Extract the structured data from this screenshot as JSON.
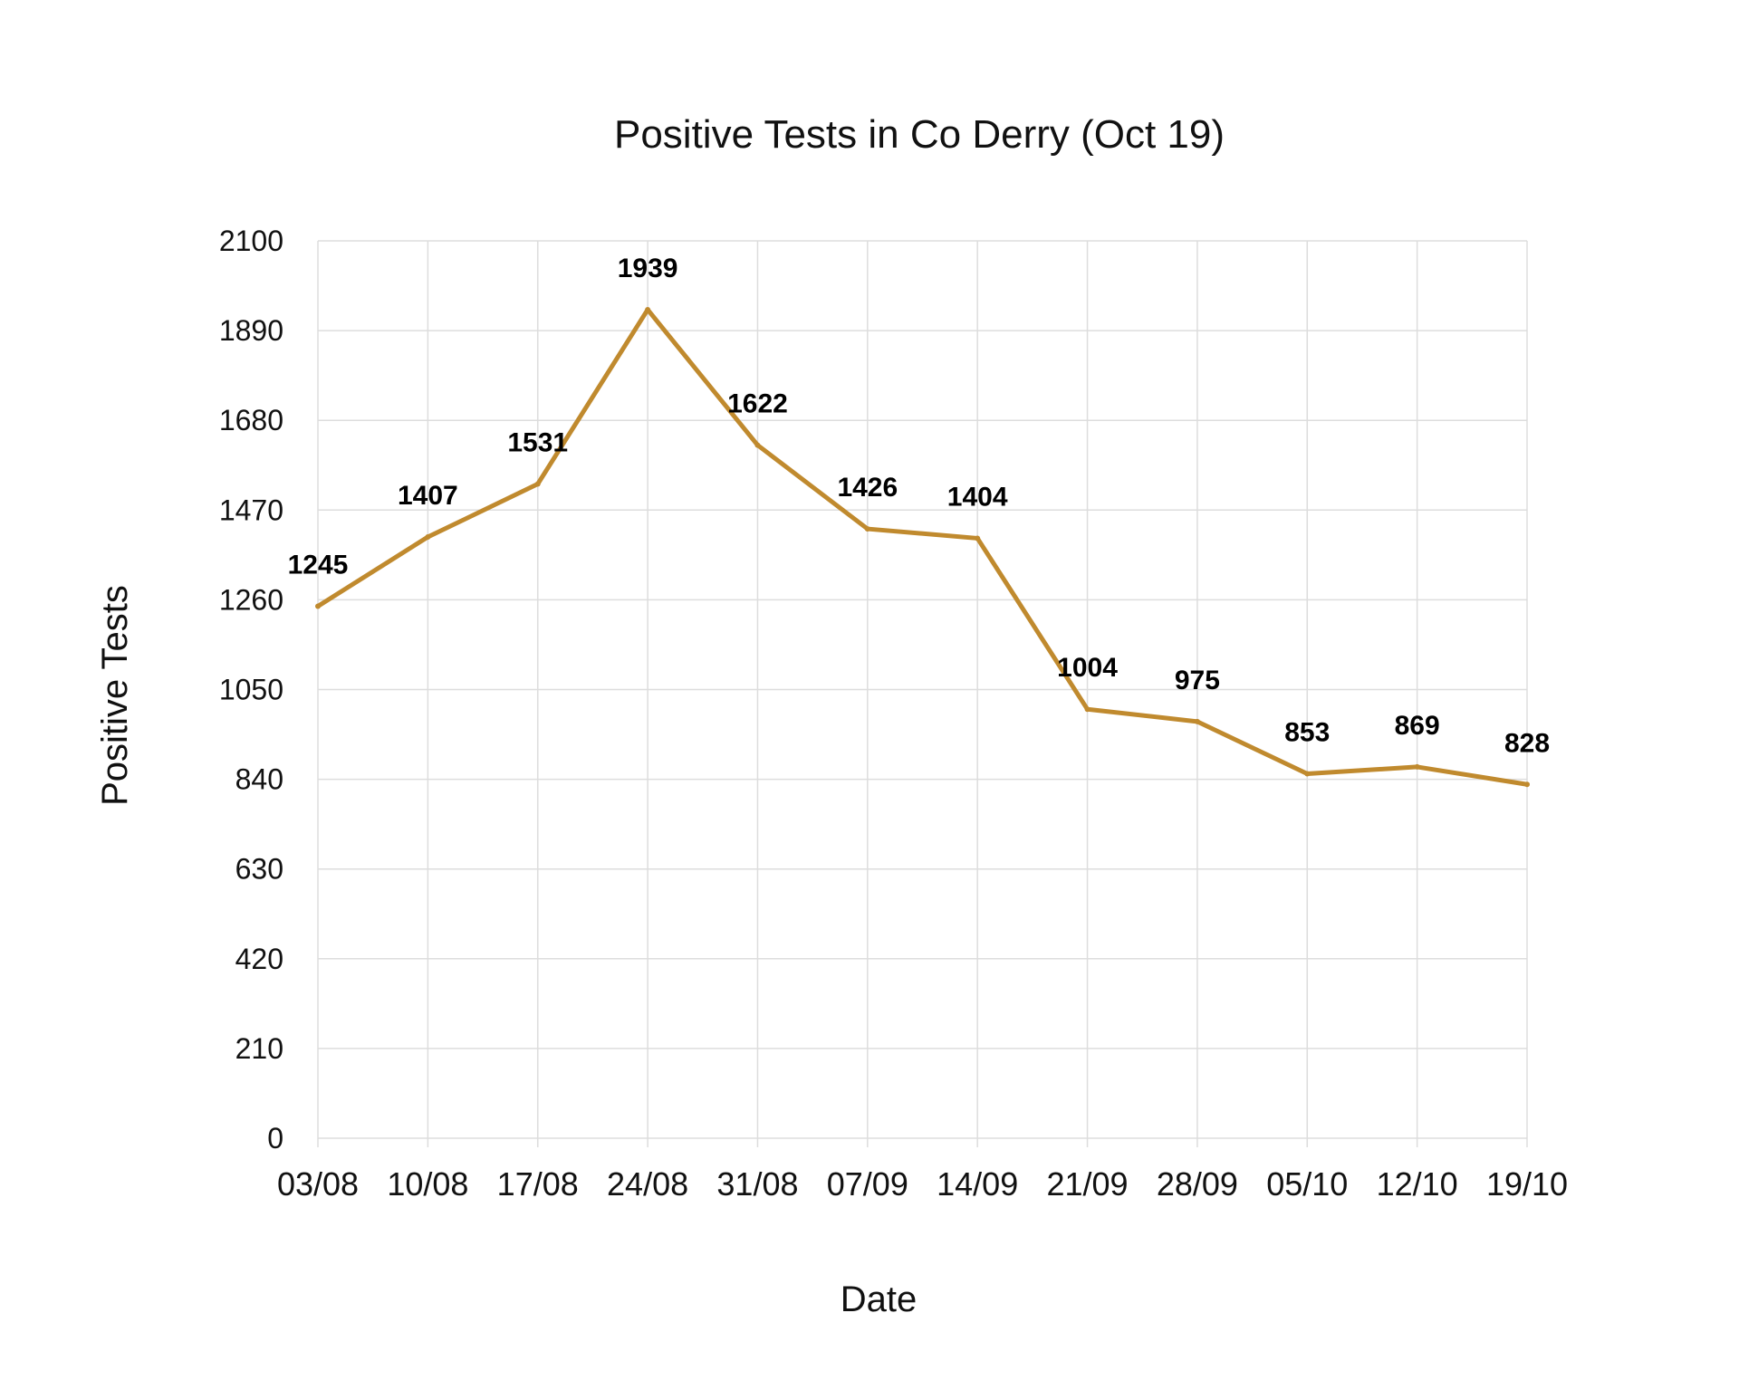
{
  "chart_data": {
    "type": "line",
    "title": "Positive Tests in Co Derry (Oct 19)",
    "xlabel": "Date",
    "ylabel": "Positive Tests",
    "categories": [
      "03/08",
      "10/08",
      "17/08",
      "24/08",
      "31/08",
      "07/09",
      "14/09",
      "21/09",
      "28/09",
      "05/10",
      "12/10",
      "19/10"
    ],
    "series": [
      {
        "values": [
          1245,
          1407,
          1531,
          1939,
          1622,
          1426,
          1404,
          1004,
          975,
          853,
          869,
          828
        ]
      }
    ],
    "ylim": [
      0,
      2100
    ],
    "yticks": [
      0,
      210,
      420,
      630,
      840,
      1050,
      1260,
      1470,
      1680,
      1890,
      2100
    ],
    "grid": true,
    "legend": "none"
  },
  "colors": {
    "line": "#c08a2e",
    "grid": "#dddddd",
    "text": "#111111"
  }
}
